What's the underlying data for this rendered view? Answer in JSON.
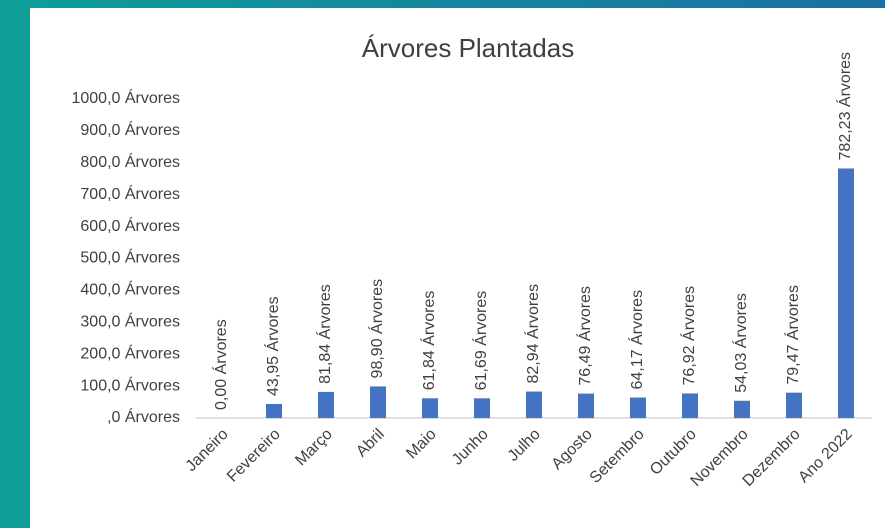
{
  "chart_data": {
    "type": "bar",
    "title": "Árvores Plantadas",
    "categories": [
      "Janeiro",
      "Fevereiro",
      "Março",
      "Abril",
      "Maio",
      "Junho",
      "Julho",
      "Agosto",
      "Setembro",
      "Outubro",
      "Novembro",
      "Dezembro",
      "Ano 2022"
    ],
    "values": [
      0,
      43.95,
      81.84,
      98.9,
      61.84,
      61.69,
      82.94,
      76.49,
      64.17,
      76.92,
      54.03,
      79.47,
      782.23
    ],
    "value_labels": [
      "0,00 Árvores",
      "43,95 Árvores",
      "81,84 Árvores",
      "98,90 Árvores",
      "61,84 Árvores",
      "61,69 Árvores",
      "82,94 Árvores",
      "76,49 Árvores",
      "64,17 Árvores",
      "76,92 Árvores",
      "54,03 Árvores",
      "79,47 Árvores",
      "782,23 Árvores"
    ],
    "color": "#4472c4",
    "ylim": [
      0,
      1000
    ],
    "yticks": [
      {
        "value": 0,
        "label": ",0 Árvores"
      },
      {
        "value": 100,
        "label": "100,0 Árvores"
      },
      {
        "value": 200,
        "label": "200,0 Árvores"
      },
      {
        "value": 300,
        "label": "300,0 Árvores"
      },
      {
        "value": 400,
        "label": "400,0 Árvores"
      },
      {
        "value": 500,
        "label": "500,0 Árvores"
      },
      {
        "value": 600,
        "label": "600,0 Árvores"
      },
      {
        "value": 700,
        "label": "700,0 Árvores"
      },
      {
        "value": 800,
        "label": "800,0 Árvores"
      },
      {
        "value": 900,
        "label": "900,0 Árvores"
      },
      {
        "value": 1000,
        "label": "1000,0 Árvores"
      }
    ],
    "grid": false
  }
}
